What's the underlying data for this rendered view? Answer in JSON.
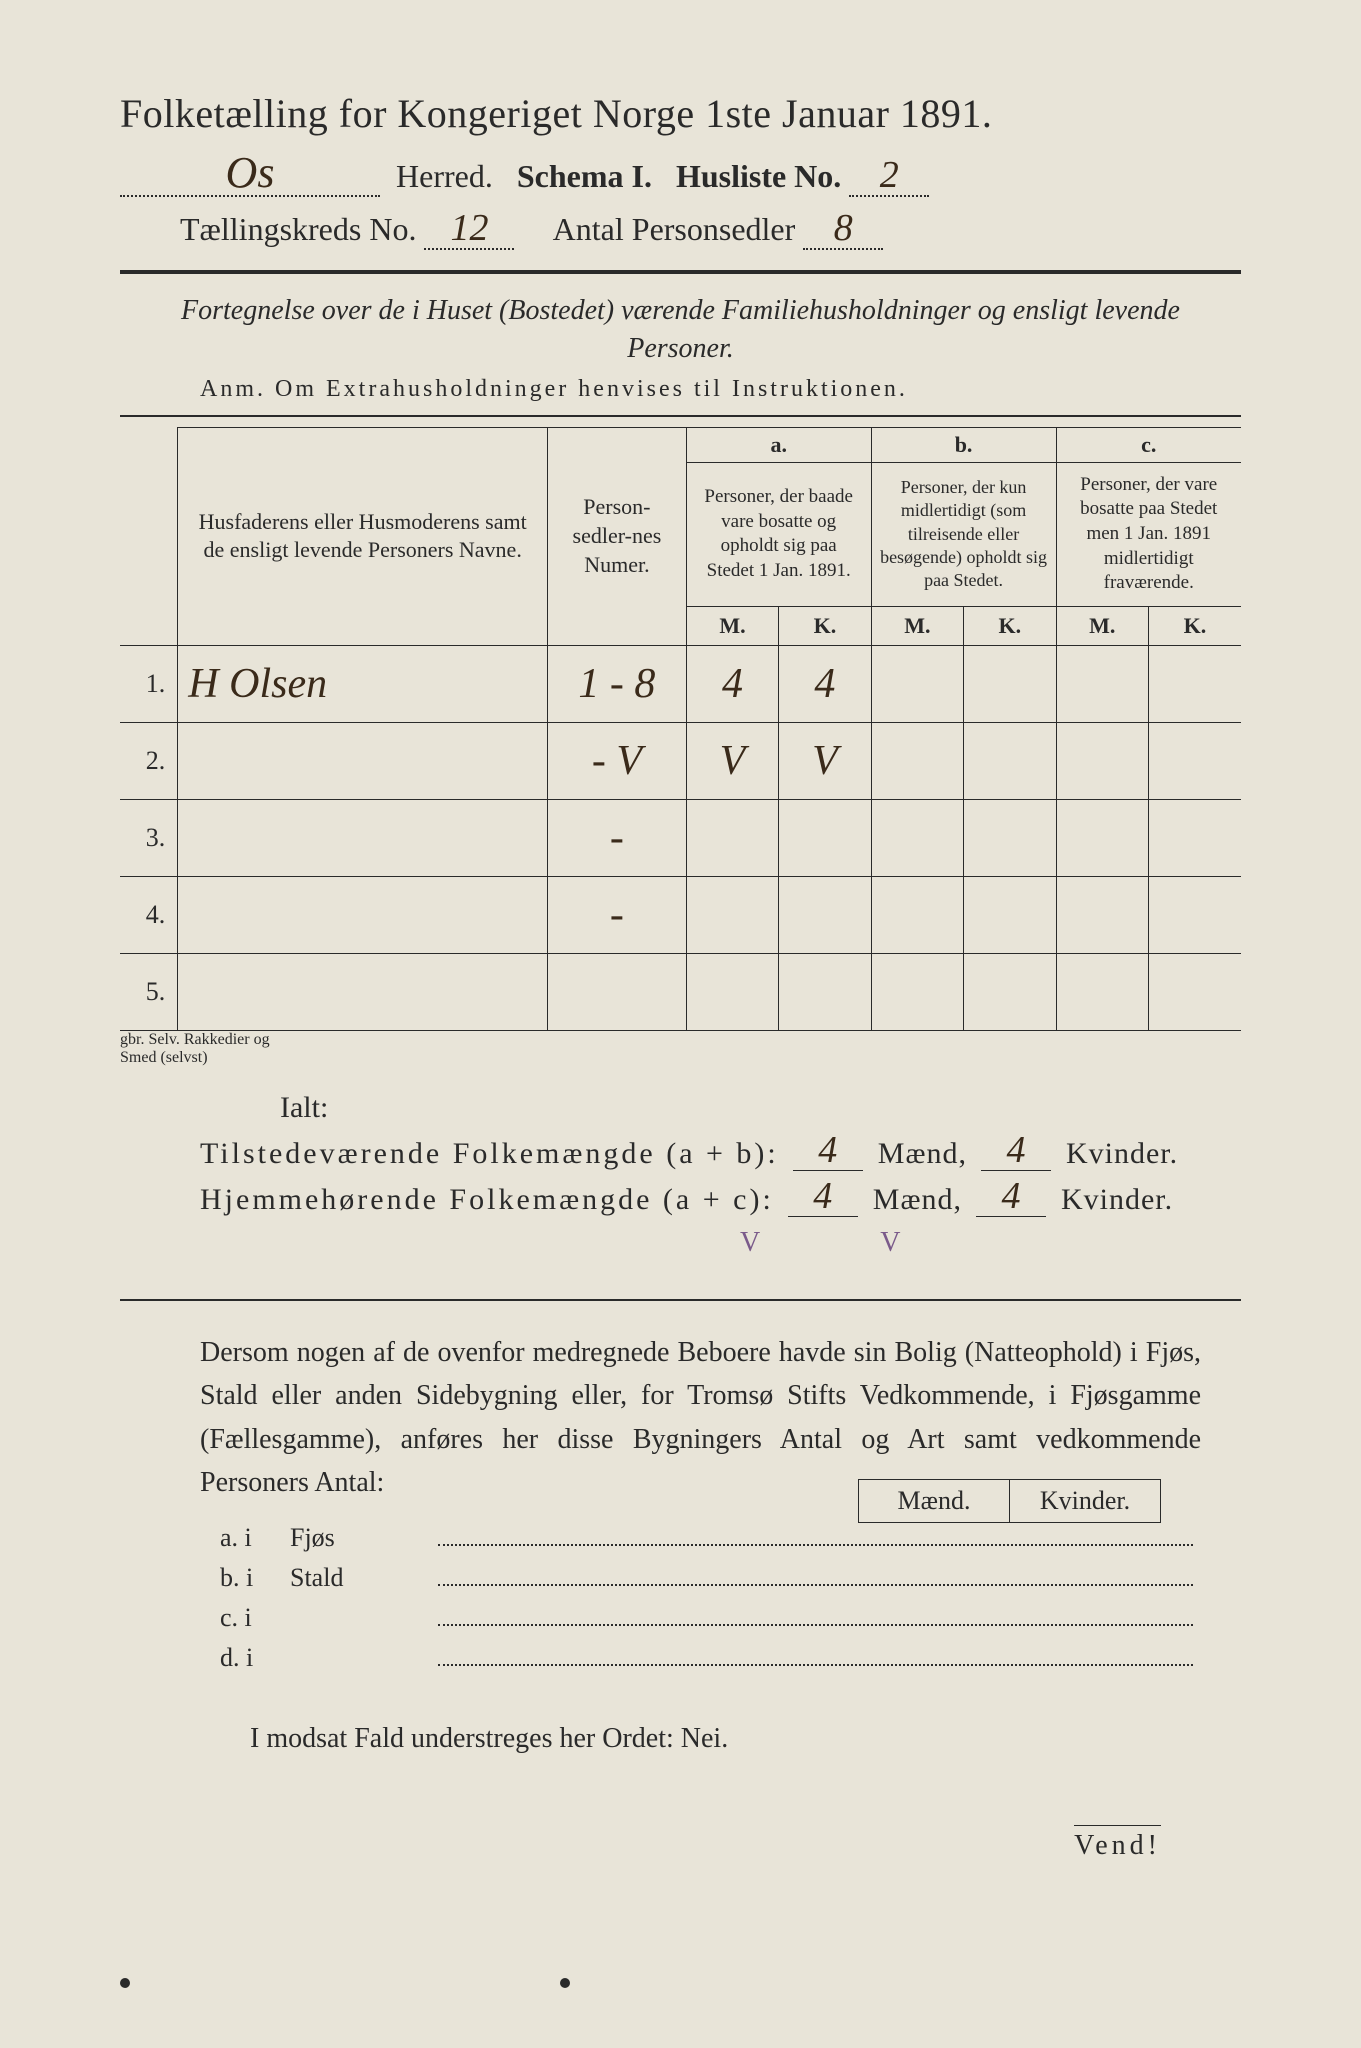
{
  "colors": {
    "page_bg": "#e8e4d8",
    "ink": "#2a2a2a",
    "handwriting_ink": "#3a2a1a",
    "pencil_note": "#7a5a8a",
    "outer_bg": "#1a1a1a"
  },
  "title": "Folketælling for Kongeriget Norge 1ste Januar 1891.",
  "header": {
    "herred_label": "Herred.",
    "herred_value": "Os",
    "schema_label": "Schema I.",
    "husliste_label": "Husliste No.",
    "husliste_value": "2",
    "kreds_label": "Tællingskreds No.",
    "kreds_value": "12",
    "antal_label": "Antal Personsedler",
    "antal_value": "8"
  },
  "intro_italic": "Fortegnelse over de i Huset (Bostedet) værende Familiehusholdninger og ensligt levende Personer.",
  "anm": "Anm.  Om Extrahusholdninger henvises til Instruktionen.",
  "table": {
    "col_names_header": "Husfaderens eller Husmoderens samt de ensligt levende Personers Navne.",
    "col_psn_header": "Person-sedler-nes Numer.",
    "group_a_label": "a.",
    "group_a_header": "Personer, der baade vare bosatte og opholdt sig paa Stedet 1 Jan. 1891.",
    "group_b_label": "b.",
    "group_b_header": "Personer, der kun midlertidigt (som tilreisende eller besøgende) opholdt sig paa Stedet.",
    "group_c_label": "c.",
    "group_c_header": "Personer, der vare bosatte paa Stedet men 1 Jan. 1891 midlertidigt fraværende.",
    "M": "M.",
    "K": "K.",
    "rows": [
      {
        "n": "1.",
        "name": "H Olsen",
        "psn": "1 - 8",
        "aM": "4",
        "aK": "4",
        "bM": "",
        "bK": "",
        "cM": "",
        "cK": "",
        "margin": "gbr. Selv. Rakkedier og"
      },
      {
        "n": "2.",
        "name": "",
        "psn": "- V",
        "aM": "V",
        "aK": "V",
        "bM": "",
        "bK": "",
        "cM": "",
        "cK": "",
        "margin": "Smed (selvst)"
      },
      {
        "n": "3.",
        "name": "",
        "psn": "-",
        "aM": "",
        "aK": "",
        "bM": "",
        "bK": "",
        "cM": "",
        "cK": "",
        "margin": ""
      },
      {
        "n": "4.",
        "name": "",
        "psn": "-",
        "aM": "",
        "aK": "",
        "bM": "",
        "bK": "",
        "cM": "",
        "cK": "",
        "margin": ""
      },
      {
        "n": "5.",
        "name": "",
        "psn": "",
        "aM": "",
        "aK": "",
        "bM": "",
        "bK": "",
        "cM": "",
        "cK": "",
        "margin": ""
      }
    ]
  },
  "ialt_label": "Ialt:",
  "sums": {
    "line1_label": "Tilstedeværende Folkemængde (a + b):",
    "line2_label": "Hjemmehørende Folkemængde (a + c):",
    "maend_label": "Mænd,",
    "kvinder_label": "Kvinder.",
    "line1_m": "4",
    "line1_k": "4",
    "line2_m": "4",
    "line2_k": "4",
    "check1": "V",
    "check2": "V"
  },
  "paragraph": "Dersom nogen af de ovenfor medregnede Beboere havde sin Bolig (Natteophold) i Fjøs, Stald eller anden Sidebygning eller, for Tromsø Stifts Vedkommende, i Fjøsgamme (Fællesgamme), anføres her disse Bygningers Antal og Art samt vedkommende Personers Antal:",
  "lower": {
    "maend": "Mænd.",
    "kvinder": "Kvinder.",
    "rows": [
      {
        "lab": "a.  i",
        "kind": "Fjøs"
      },
      {
        "lab": "b.  i",
        "kind": "Stald"
      },
      {
        "lab": "c.  i",
        "kind": ""
      },
      {
        "lab": "d.  i",
        "kind": ""
      }
    ]
  },
  "nei_line": "I modsat Fald understreges her Ordet: Nei.",
  "vend": "Vend!"
}
